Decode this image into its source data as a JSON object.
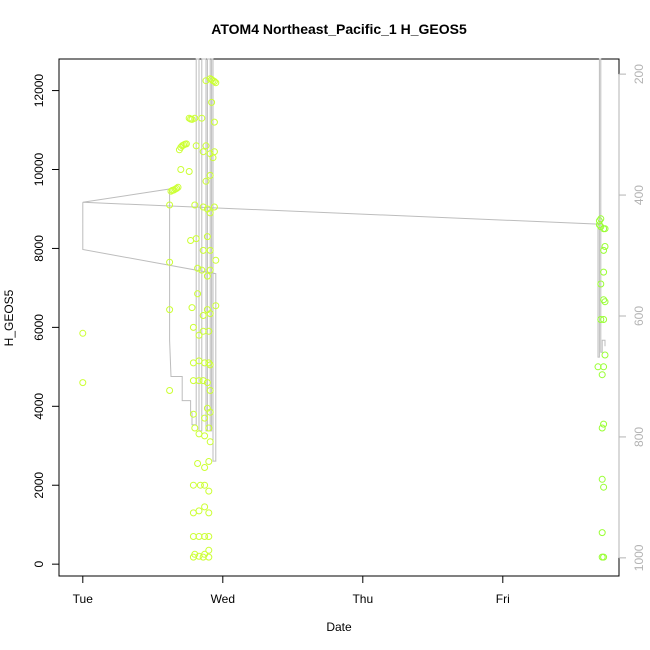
{
  "chart_data": {
    "type": "scatter",
    "title": "ATOM4 Northeast_Pacific_1 H_GEOS5",
    "xlabel": "Date",
    "ylabel": "H_GEOS5",
    "x_ticks": [
      "Tue",
      "Wed",
      "Thu",
      "Fri"
    ],
    "x_tick_days": [
      0,
      1,
      2,
      3
    ],
    "xlim": [
      -0.17,
      3.83
    ],
    "ylim": [
      -300,
      12800
    ],
    "y_ticks": [
      0,
      2000,
      4000,
      6000,
      8000,
      10000,
      12000
    ],
    "y2_ticks": [
      200,
      400,
      600,
      800,
      1000
    ],
    "y2lim": [
      1030,
      175
    ],
    "y2_reversed": true,
    "grid": false,
    "colors": {
      "points_early": "#ccff33",
      "points_late": "#99ff33",
      "pressure_line": "#bdbdbd",
      "right_axis": "#b3b3b3"
    },
    "series": [
      {
        "points": [
          [
            0.0,
            5850
          ],
          [
            0.0,
            4600
          ],
          [
            0.62,
            9100
          ],
          [
            0.62,
            7650
          ],
          [
            0.62,
            6450
          ],
          [
            0.62,
            4400
          ],
          [
            0.63,
            9450
          ],
          [
            0.64,
            9470
          ],
          [
            0.65,
            9480
          ],
          [
            0.66,
            9500
          ],
          [
            0.67,
            9520
          ],
          [
            0.68,
            9550
          ],
          [
            0.69,
            10500
          ],
          [
            0.7,
            10560
          ],
          [
            0.71,
            10600
          ],
          [
            0.72,
            10620
          ],
          [
            0.73,
            10640
          ],
          [
            0.74,
            10650
          ],
          [
            0.7,
            10000
          ],
          [
            0.76,
            11300
          ],
          [
            0.77,
            11280
          ],
          [
            0.78,
            11270
          ],
          [
            0.76,
            9950
          ],
          [
            0.77,
            8200
          ],
          [
            0.78,
            6500
          ],
          [
            0.79,
            6000
          ],
          [
            0.79,
            5100
          ],
          [
            0.79,
            4650
          ],
          [
            0.79,
            3800
          ],
          [
            0.8,
            3450
          ],
          [
            0.79,
            2000
          ],
          [
            0.79,
            1300
          ],
          [
            0.79,
            700
          ],
          [
            0.8,
            250
          ],
          [
            0.79,
            180
          ],
          [
            0.8,
            11300
          ],
          [
            0.81,
            10600
          ],
          [
            0.8,
            9100
          ],
          [
            0.81,
            8250
          ],
          [
            0.82,
            7500
          ],
          [
            0.82,
            6850
          ],
          [
            0.83,
            5800
          ],
          [
            0.83,
            5150
          ],
          [
            0.83,
            4650
          ],
          [
            0.83,
            3300
          ],
          [
            0.82,
            2550
          ],
          [
            0.84,
            2000
          ],
          [
            0.83,
            1350
          ],
          [
            0.83,
            700
          ],
          [
            0.83,
            200
          ],
          [
            0.85,
            11300
          ],
          [
            0.86,
            10450
          ],
          [
            0.86,
            9050
          ],
          [
            0.86,
            7950
          ],
          [
            0.85,
            7450
          ],
          [
            0.86,
            6300
          ],
          [
            0.86,
            5900
          ],
          [
            0.87,
            5100
          ],
          [
            0.86,
            4650
          ],
          [
            0.87,
            3700
          ],
          [
            0.87,
            3250
          ],
          [
            0.87,
            2450
          ],
          [
            0.87,
            2000
          ],
          [
            0.87,
            1450
          ],
          [
            0.87,
            700
          ],
          [
            0.87,
            250
          ],
          [
            0.86,
            180
          ],
          [
            0.88,
            12250
          ],
          [
            0.88,
            10600
          ],
          [
            0.88,
            9700
          ],
          [
            0.89,
            9000
          ],
          [
            0.89,
            8300
          ],
          [
            0.89,
            7300
          ],
          [
            0.89,
            6450
          ],
          [
            0.9,
            5900
          ],
          [
            0.9,
            5100
          ],
          [
            0.89,
            4600
          ],
          [
            0.89,
            3950
          ],
          [
            0.9,
            3450
          ],
          [
            0.9,
            2600
          ],
          [
            0.9,
            1850
          ],
          [
            0.9,
            1300
          ],
          [
            0.9,
            700
          ],
          [
            0.9,
            350
          ],
          [
            0.9,
            180
          ],
          [
            0.91,
            12300
          ],
          [
            0.91,
            10400
          ],
          [
            0.91,
            9850
          ],
          [
            0.91,
            8900
          ],
          [
            0.91,
            7950
          ],
          [
            0.91,
            7450
          ],
          [
            0.91,
            6350
          ],
          [
            0.91,
            5050
          ],
          [
            0.91,
            3850
          ],
          [
            0.91,
            3100
          ],
          [
            0.91,
            4400
          ],
          [
            0.92,
            12280
          ],
          [
            0.93,
            12250
          ],
          [
            0.94,
            12230
          ],
          [
            0.95,
            12200
          ],
          [
            0.92,
            11700
          ],
          [
            0.93,
            10300
          ],
          [
            0.94,
            11200
          ],
          [
            0.94,
            10450
          ],
          [
            0.94,
            9050
          ],
          [
            0.95,
            7700
          ],
          [
            0.95,
            6550
          ]
        ]
      },
      {
        "points": [
          [
            3.68,
            5000
          ],
          [
            3.69,
            8700
          ],
          [
            3.69,
            8600
          ],
          [
            3.7,
            8750
          ],
          [
            3.7,
            8550
          ],
          [
            3.7,
            7100
          ],
          [
            3.7,
            6200
          ],
          [
            3.71,
            4800
          ],
          [
            3.71,
            3450
          ],
          [
            3.71,
            2150
          ],
          [
            3.71,
            800
          ],
          [
            3.71,
            180
          ],
          [
            3.72,
            8500
          ],
          [
            3.72,
            7950
          ],
          [
            3.72,
            7400
          ],
          [
            3.72,
            6700
          ],
          [
            3.72,
            6200
          ],
          [
            3.72,
            5000
          ],
          [
            3.72,
            3550
          ],
          [
            3.72,
            1950
          ],
          [
            3.72,
            180
          ],
          [
            3.73,
            8500
          ],
          [
            3.73,
            8050
          ],
          [
            3.73,
            6650
          ],
          [
            3.73,
            5300
          ]
        ]
      }
    ],
    "pressure_line": [
      [
        0.0,
        412
      ],
      [
        0.0,
        490
      ],
      [
        0.95,
        530
      ],
      [
        0.95,
        840
      ],
      [
        0.93,
        840
      ],
      [
        0.93,
        175
      ],
      [
        0.92,
        175
      ],
      [
        0.92,
        790
      ],
      [
        0.91,
        790
      ],
      [
        0.91,
        175
      ],
      [
        0.89,
        175
      ],
      [
        0.89,
        790
      ],
      [
        0.88,
        790
      ],
      [
        0.88,
        175
      ],
      [
        0.85,
        175
      ],
      [
        0.85,
        790
      ],
      [
        0.83,
        790
      ],
      [
        0.83,
        175
      ],
      [
        0.81,
        175
      ],
      [
        0.81,
        780
      ],
      [
        0.78,
        780
      ],
      [
        0.78,
        760
      ],
      [
        0.77,
        760
      ],
      [
        0.77,
        740
      ],
      [
        0.71,
        740
      ],
      [
        0.71,
        700
      ],
      [
        0.68,
        700
      ],
      [
        0.68,
        700
      ],
      [
        0.63,
        700
      ],
      [
        0.62,
        640
      ],
      [
        0.62,
        390
      ],
      [
        0.0,
        412
      ],
      [
        3.68,
        448
      ],
      [
        3.68,
        668
      ],
      [
        3.69,
        668
      ],
      [
        3.69,
        175
      ],
      [
        3.7,
        175
      ],
      [
        3.7,
        660
      ],
      [
        3.71,
        660
      ],
      [
        3.71,
        640
      ],
      [
        3.73,
        640
      ],
      [
        3.73,
        650
      ]
    ]
  }
}
